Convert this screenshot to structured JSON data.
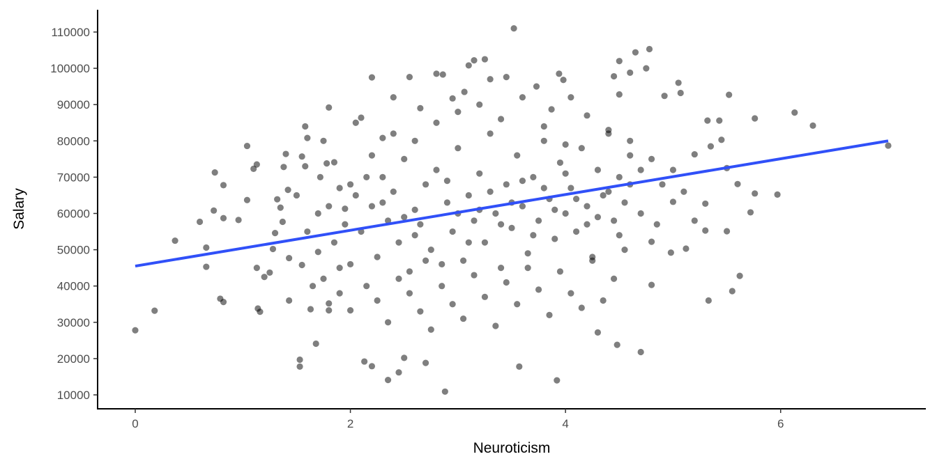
{
  "chart_data": {
    "type": "scatter",
    "xlabel": "Neuroticism",
    "ylabel": "Salary",
    "xlim": [
      -0.35,
      7.35
    ],
    "ylim": [
      6160,
      116140
    ],
    "grid": false,
    "x_ticks": [
      0,
      2,
      4,
      6
    ],
    "y_ticks": [
      10000,
      20000,
      30000,
      40000,
      50000,
      60000,
      70000,
      80000,
      90000,
      100000,
      110000
    ],
    "point_color": "#000000",
    "point_opacity": 0.5,
    "fit_line": {
      "color": "#3050f8",
      "x": [
        0,
        7
      ],
      "y": [
        45500,
        80000
      ]
    },
    "points": [
      [
        0,
        27800
      ],
      [
        0.18,
        33200
      ],
      [
        0.37,
        52500
      ],
      [
        0.6,
        57700
      ],
      [
        0.66,
        50600
      ],
      [
        0.66,
        45300
      ],
      [
        0.74,
        71300
      ],
      [
        0.73,
        60800
      ],
      [
        0.79,
        36500
      ],
      [
        0.82,
        35600
      ],
      [
        0.82,
        67800
      ],
      [
        0.82,
        58700
      ],
      [
        0.96,
        58200
      ],
      [
        1.04,
        63700
      ],
      [
        1.04,
        78600
      ],
      [
        1.1,
        72300
      ],
      [
        1.13,
        73500
      ],
      [
        1.13,
        45000
      ],
      [
        1.14,
        33800
      ],
      [
        1.16,
        32900
      ],
      [
        1.2,
        42500
      ],
      [
        1.25,
        43700
      ],
      [
        1.28,
        50200
      ],
      [
        1.3,
        54600
      ],
      [
        1.32,
        63900
      ],
      [
        1.35,
        61600
      ],
      [
        1.37,
        57700
      ],
      [
        1.38,
        72800
      ],
      [
        1.4,
        76400
      ],
      [
        1.42,
        66500
      ],
      [
        1.43,
        47700
      ],
      [
        1.43,
        36000
      ],
      [
        1.5,
        65000
      ],
      [
        1.53,
        19700
      ],
      [
        1.53,
        17800
      ],
      [
        1.55,
        45800
      ],
      [
        1.55,
        75700
      ],
      [
        1.58,
        73000
      ],
      [
        1.58,
        84000
      ],
      [
        1.6,
        80800
      ],
      [
        1.63,
        33600
      ],
      [
        1.68,
        24100
      ],
      [
        1.7,
        49400
      ],
      [
        1.72,
        70000
      ],
      [
        1.75,
        80000
      ],
      [
        1.78,
        73800
      ],
      [
        1.8,
        89200
      ],
      [
        1.8,
        35200
      ],
      [
        1.8,
        33300
      ],
      [
        1.85,
        74100
      ],
      [
        1.9,
        67000
      ],
      [
        1.95,
        61300
      ],
      [
        2.0,
        46000
      ],
      [
        2.0,
        33300
      ],
      [
        2.05,
        85000
      ],
      [
        2.1,
        86400
      ],
      [
        2.13,
        19200
      ],
      [
        2.2,
        17900
      ],
      [
        2.2,
        97500
      ],
      [
        2.3,
        80800
      ],
      [
        2.35,
        14100
      ],
      [
        2.4,
        92000
      ],
      [
        2.45,
        16200
      ],
      [
        2.5,
        20200
      ],
      [
        2.55,
        97600
      ],
      [
        2.65,
        89000
      ],
      [
        2.7,
        18800
      ],
      [
        2.8,
        98500
      ],
      [
        2.86,
        98300
      ],
      [
        2.88,
        10900
      ],
      [
        2.95,
        91700
      ],
      [
        3.06,
        93500
      ],
      [
        3.1,
        100800
      ],
      [
        3.15,
        102200
      ],
      [
        3.25,
        102500
      ],
      [
        3.3,
        97000
      ],
      [
        3.45,
        97600
      ],
      [
        3.52,
        111000
      ],
      [
        3.57,
        17800
      ],
      [
        3.73,
        95000
      ],
      [
        3.87,
        88700
      ],
      [
        3.92,
        14000
      ],
      [
        3.94,
        98500
      ],
      [
        3.98,
        96800
      ],
      [
        4.05,
        92000
      ],
      [
        4.3,
        27200
      ],
      [
        4.45,
        97800
      ],
      [
        4.5,
        102000
      ],
      [
        4.5,
        92800
      ],
      [
        4.48,
        23800
      ],
      [
        4.6,
        98800
      ],
      [
        4.65,
        104400
      ],
      [
        4.7,
        21800
      ],
      [
        4.75,
        100000
      ],
      [
        4.78,
        105300
      ],
      [
        4.8,
        40300
      ],
      [
        4.8,
        52200
      ],
      [
        4.92,
        92400
      ],
      [
        4.98,
        49200
      ],
      [
        5.07,
        93200
      ],
      [
        5.12,
        50300
      ],
      [
        5.3,
        55300
      ],
      [
        5.32,
        85600
      ],
      [
        5.33,
        36000
      ],
      [
        5.35,
        78500
      ],
      [
        5.5,
        55100
      ],
      [
        5.52,
        92700
      ],
      [
        5.55,
        38600
      ],
      [
        5.6,
        68100
      ],
      [
        5.62,
        42800
      ],
      [
        5.72,
        60300
      ],
      [
        5.76,
        86200
      ],
      [
        5.76,
        65500
      ],
      [
        5.97,
        65200
      ],
      [
        6.13,
        87800
      ],
      [
        6.3,
        84200
      ],
      [
        7.0,
        78700
      ],
      [
        5.45,
        80300
      ],
      [
        5.43,
        85600
      ],
      [
        5.2,
        76300
      ],
      [
        5.0,
        63200
      ],
      [
        5.05,
        96000
      ],
      [
        5.3,
        62700
      ],
      [
        5.5,
        72500
      ],
      [
        2.1,
        55000
      ],
      [
        2.2,
        62000
      ],
      [
        2.25,
        48000
      ],
      [
        2.3,
        70000
      ],
      [
        2.35,
        58000
      ],
      [
        2.4,
        66000
      ],
      [
        2.45,
        52000
      ],
      [
        2.5,
        75000
      ],
      [
        2.55,
        44000
      ],
      [
        2.6,
        61000
      ],
      [
        2.65,
        57000
      ],
      [
        2.7,
        68000
      ],
      [
        2.75,
        50000
      ],
      [
        2.8,
        72000
      ],
      [
        2.85,
        40000
      ],
      [
        2.9,
        63000
      ],
      [
        2.95,
        55000
      ],
      [
        3.0,
        78000
      ],
      [
        3.05,
        47000
      ],
      [
        3.1,
        65000
      ],
      [
        3.15,
        58000
      ],
      [
        3.2,
        71000
      ],
      [
        3.25,
        52000
      ],
      [
        3.3,
        82000
      ],
      [
        3.35,
        60000
      ],
      [
        3.4,
        45000
      ],
      [
        3.45,
        68000
      ],
      [
        3.5,
        56000
      ],
      [
        3.55,
        76000
      ],
      [
        3.6,
        62000
      ],
      [
        3.65,
        49000
      ],
      [
        3.7,
        70000
      ],
      [
        3.75,
        58000
      ],
      [
        3.8,
        80000
      ],
      [
        3.85,
        64000
      ],
      [
        3.9,
        53000
      ],
      [
        3.95,
        74000
      ],
      [
        4.0,
        60000
      ],
      [
        4.05,
        67000
      ],
      [
        4.1,
        55000
      ],
      [
        4.15,
        78000
      ],
      [
        4.2,
        62000
      ],
      [
        4.25,
        48000
      ],
      [
        4.3,
        72000
      ],
      [
        4.35,
        65000
      ],
      [
        4.4,
        82000
      ],
      [
        4.45,
        58000
      ],
      [
        4.5,
        70000
      ],
      [
        4.55,
        63000
      ],
      [
        4.6,
        76000
      ],
      [
        2.15,
        40000
      ],
      [
        2.25,
        36000
      ],
      [
        2.35,
        30000
      ],
      [
        2.45,
        42000
      ],
      [
        2.55,
        38000
      ],
      [
        2.65,
        33000
      ],
      [
        2.75,
        28000
      ],
      [
        2.85,
        46000
      ],
      [
        2.95,
        35000
      ],
      [
        3.05,
        31000
      ],
      [
        3.15,
        43000
      ],
      [
        3.25,
        37000
      ],
      [
        3.35,
        29000
      ],
      [
        3.45,
        41000
      ],
      [
        3.55,
        35000
      ],
      [
        3.65,
        45000
      ],
      [
        3.75,
        39000
      ],
      [
        3.85,
        32000
      ],
      [
        3.95,
        44000
      ],
      [
        4.05,
        38000
      ],
      [
        4.15,
        34000
      ],
      [
        4.25,
        47000
      ],
      [
        4.35,
        36000
      ],
      [
        4.45,
        42000
      ],
      [
        4.55,
        50000
      ],
      [
        2.2,
        76000
      ],
      [
        2.4,
        82000
      ],
      [
        2.6,
        80000
      ],
      [
        2.8,
        85000
      ],
      [
        3.0,
        88000
      ],
      [
        3.2,
        90000
      ],
      [
        3.4,
        86000
      ],
      [
        3.6,
        92000
      ],
      [
        3.8,
        84000
      ],
      [
        4.0,
        79000
      ],
      [
        4.2,
        87000
      ],
      [
        4.4,
        83000
      ],
      [
        4.6,
        80000
      ],
      [
        4.8,
        75000
      ],
      [
        5.0,
        72000
      ],
      [
        4.9,
        68000
      ],
      [
        4.7,
        60000
      ],
      [
        4.85,
        57000
      ],
      [
        5.1,
        66000
      ],
      [
        5.2,
        58000
      ],
      [
        2.05,
        65000
      ],
      [
        2.15,
        70000
      ],
      [
        2.3,
        63000
      ],
      [
        2.5,
        59000
      ],
      [
        2.6,
        54000
      ],
      [
        2.7,
        47000
      ],
      [
        2.9,
        69000
      ],
      [
        3.0,
        60000
      ],
      [
        3.1,
        52000
      ],
      [
        3.2,
        61000
      ],
      [
        3.3,
        66000
      ],
      [
        3.4,
        57000
      ],
      [
        3.5,
        63000
      ],
      [
        3.6,
        69000
      ],
      [
        3.7,
        54000
      ],
      [
        3.8,
        67000
      ],
      [
        3.9,
        61000
      ],
      [
        4.0,
        71000
      ],
      [
        4.1,
        64000
      ],
      [
        4.2,
        57000
      ],
      [
        4.3,
        59000
      ],
      [
        4.4,
        66000
      ],
      [
        4.5,
        54000
      ],
      [
        4.6,
        68000
      ],
      [
        4.7,
        72000
      ],
      [
        1.6,
        55000
      ],
      [
        1.7,
        60000
      ],
      [
        1.75,
        42000
      ],
      [
        1.85,
        52000
      ],
      [
        1.9,
        45000
      ],
      [
        1.95,
        57000
      ],
      [
        2.0,
        68000
      ],
      [
        1.65,
        40000
      ],
      [
        1.8,
        62000
      ],
      [
        1.9,
        38000
      ]
    ]
  }
}
